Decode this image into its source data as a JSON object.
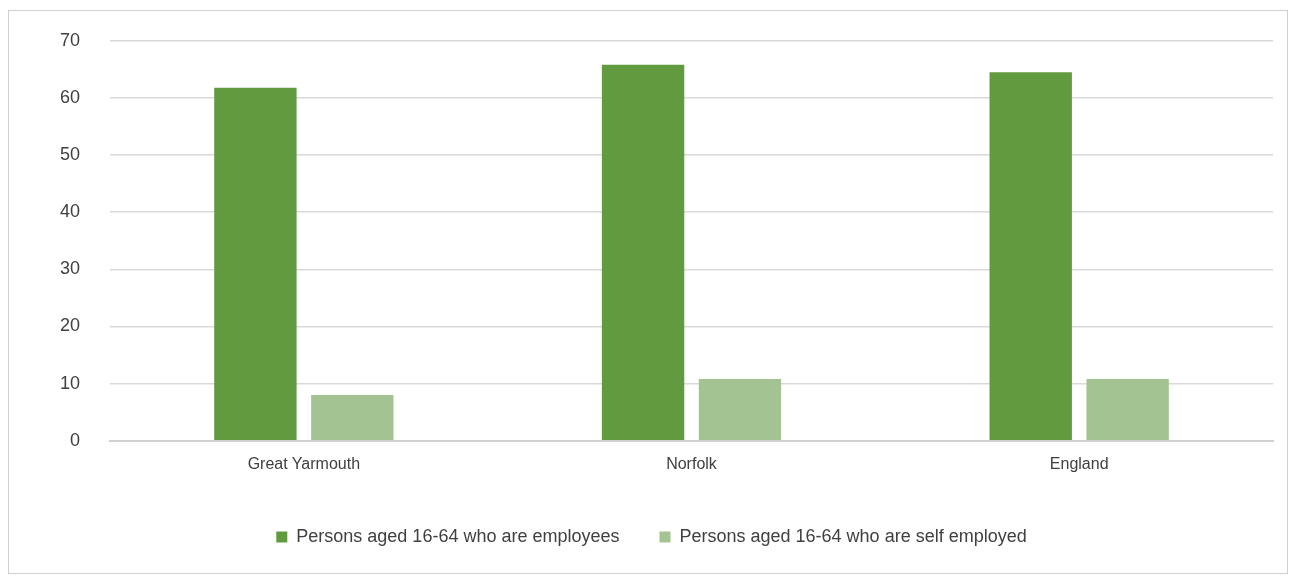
{
  "chart_data": {
    "type": "bar",
    "categories": [
      "Great Yarmouth",
      "Norfolk",
      "England"
    ],
    "series": [
      {
        "name": "Persons aged 16-64 who are employees",
        "color": "#629a3f",
        "values": [
          61.8,
          65.8,
          64.5
        ]
      },
      {
        "name": "Persons aged 16-64 who are self employed",
        "color": "#a3c492",
        "values": [
          8.0,
          10.8,
          10.8
        ]
      }
    ],
    "ylim": [
      0,
      70
    ],
    "yticks": [
      0,
      10,
      20,
      30,
      40,
      50,
      60,
      70
    ],
    "grid": "y",
    "legend": "bottom"
  }
}
